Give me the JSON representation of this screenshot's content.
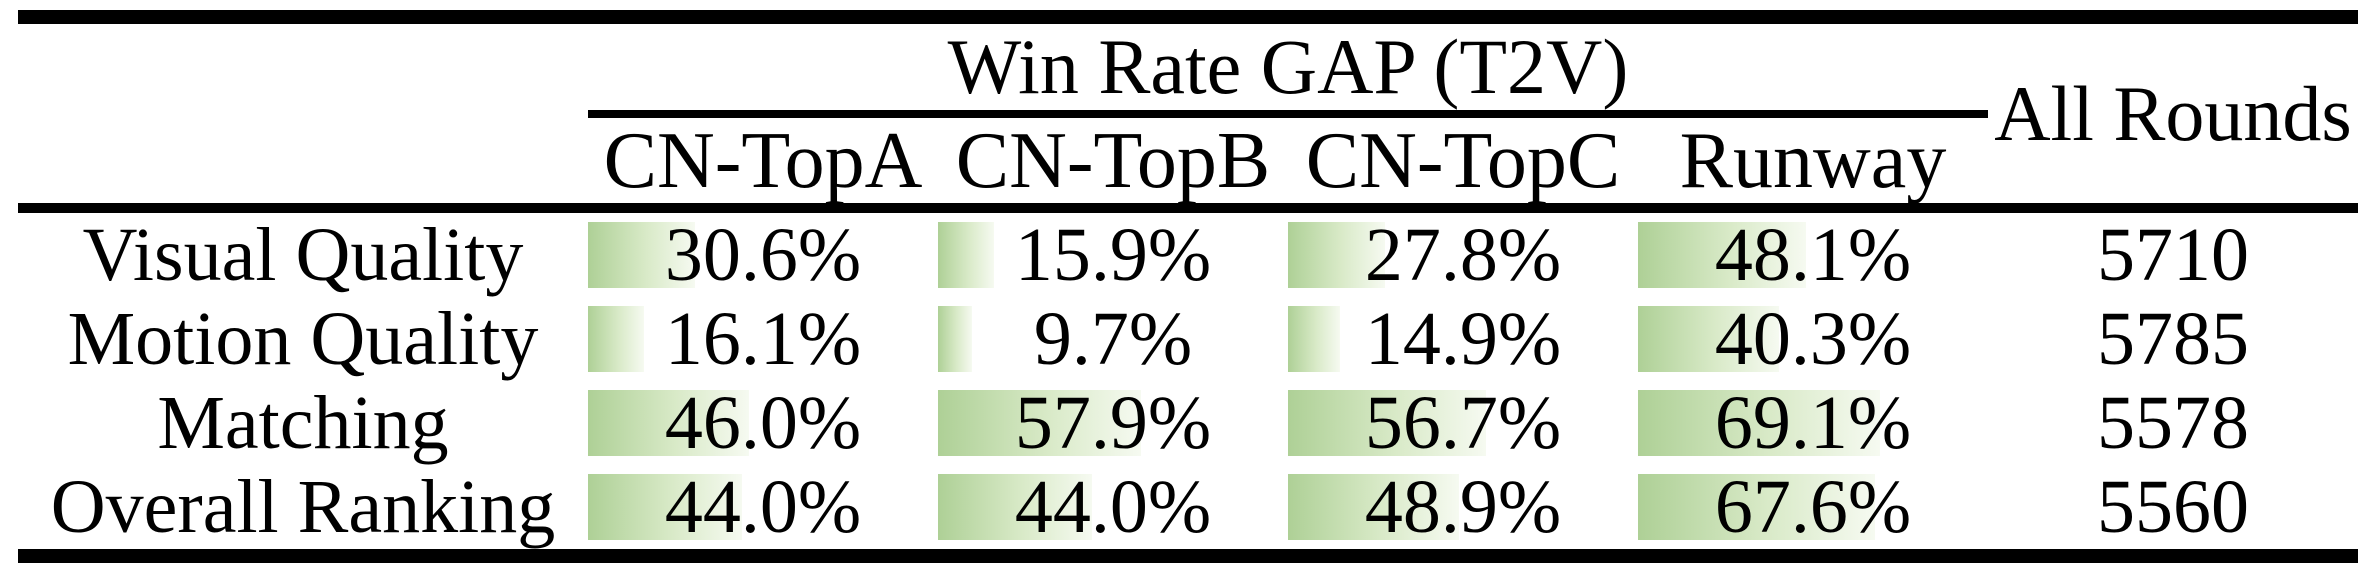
{
  "table": {
    "title": "Win Rate GAP (T2V)",
    "all_rounds_header": "All Rounds",
    "columns": [
      "CN-TopA",
      "CN-TopB",
      "CN-TopC",
      "Runway"
    ],
    "rows": [
      {
        "label": "Visual Quality",
        "values": [
          {
            "pct": 30.6,
            "text": "30.6%"
          },
          {
            "pct": 15.9,
            "text": "15.9%"
          },
          {
            "pct": 27.8,
            "text": "27.8%"
          },
          {
            "pct": 48.1,
            "text": "48.1%"
          }
        ],
        "all_rounds": "5710"
      },
      {
        "label": "Motion Quality",
        "values": [
          {
            "pct": 16.1,
            "text": "16.1%"
          },
          {
            "pct": 9.7,
            "text": "9.7%"
          },
          {
            "pct": 14.9,
            "text": "14.9%"
          },
          {
            "pct": 40.3,
            "text": "40.3%"
          }
        ],
        "all_rounds": "5785"
      },
      {
        "label": "Matching",
        "values": [
          {
            "pct": 46.0,
            "text": "46.0%"
          },
          {
            "pct": 57.9,
            "text": "57.9%"
          },
          {
            "pct": 56.7,
            "text": "56.7%"
          },
          {
            "pct": 69.1,
            "text": "69.1%"
          }
        ],
        "all_rounds": "5578"
      },
      {
        "label": "Overall Ranking",
        "values": [
          {
            "pct": 44.0,
            "text": "44.0%"
          },
          {
            "pct": 44.0,
            "text": "44.0%"
          },
          {
            "pct": 48.9,
            "text": "48.9%"
          },
          {
            "pct": 67.6,
            "text": "67.6%"
          }
        ],
        "all_rounds": "5560"
      }
    ]
  },
  "colors": {
    "bar_gradient_start": "#aed096",
    "bar_gradient_mid": "#d9eac8",
    "bar_gradient_end": "#f6faf1",
    "rule": "#000000",
    "text": "#000000",
    "background": "#ffffff"
  }
}
